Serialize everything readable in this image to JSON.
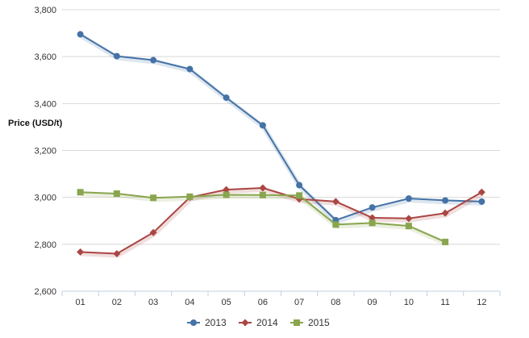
{
  "chart_data": {
    "type": "line",
    "title": "",
    "xlabel": "",
    "ylabel": "Price (USD/t)",
    "categories": [
      "01",
      "02",
      "03",
      "04",
      "05",
      "06",
      "07",
      "08",
      "09",
      "10",
      "11",
      "12"
    ],
    "ylim": [
      2600,
      3800
    ],
    "yticks": [
      2600,
      2800,
      3000,
      3200,
      3400,
      3600,
      3800
    ],
    "ytick_labels": [
      "2,600",
      "2,800",
      "3,000",
      "3,200",
      "3,400",
      "3,600",
      "3,800"
    ],
    "grid": "horizontal",
    "legend_position": "bottom-center",
    "series": [
      {
        "name": "2013",
        "color": "#4572a7",
        "marker": "circle",
        "values": [
          3695,
          3602,
          3585,
          3547,
          3425,
          3307,
          3052,
          2903,
          2957,
          2995,
          2987,
          2982
        ]
      },
      {
        "name": "2014",
        "color": "#aa4643",
        "marker": "diamond",
        "values": [
          2767,
          2760,
          2850,
          3000,
          3033,
          3040,
          2993,
          2982,
          2913,
          2910,
          2933,
          3022
        ]
      },
      {
        "name": "2015",
        "color": "#89a54e",
        "marker": "square",
        "values": [
          3022,
          3016,
          2998,
          3003,
          3011,
          3010,
          3008,
          2884,
          2891,
          2878,
          2810,
          null
        ]
      }
    ]
  }
}
